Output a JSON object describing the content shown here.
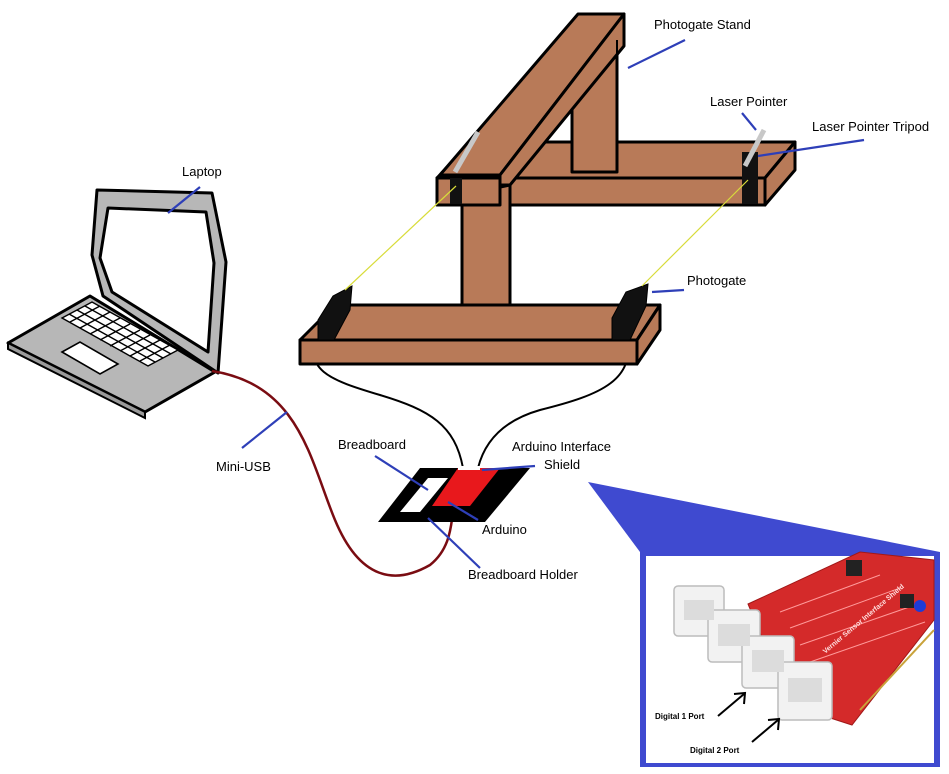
{
  "labels": {
    "photogate_stand": "Photogate Stand",
    "laser_pointer": "Laser Pointer",
    "laser_pointer_tripod": "Laser Pointer Tripod",
    "laptop": "Laptop",
    "photogate": "Photogate",
    "mini_usb": "Mini-USB",
    "breadboard": "Breadboard",
    "arduino_interface_shield_line1": "Arduino Interface",
    "arduino_interface_shield_line2": "Shield",
    "arduino": "Arduino",
    "breadboard_holder": "Breadboard Holder"
  },
  "inset": {
    "digital1": "Digital 1 Port",
    "digital2": "Digital 2 Port",
    "board_text": "Vernier Sensor Interface Shield"
  },
  "colors": {
    "wood": "#b87a58",
    "outline": "#000000",
    "pointer_line": "#2e3fb8",
    "callout_blue": "#3f4ad0",
    "usb_cable": "#7a0c12",
    "laser_beam": "#d8dc3a",
    "shield_red": "#e8181c",
    "laptop_gray": "#b7b7b7"
  }
}
